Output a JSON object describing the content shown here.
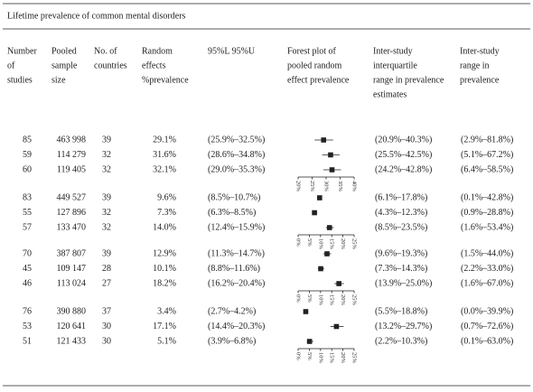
{
  "title": "Lifetime prevalence of common mental disorders",
  "table": {
    "columns": [
      [
        "Number",
        "of",
        "studies"
      ],
      [
        "Pooled",
        "sample",
        "size"
      ],
      [
        "No. of",
        "countries"
      ],
      [
        "Random",
        "effects",
        "%prevalence"
      ],
      [
        "95%L 95%U"
      ],
      [
        "Forest plot of",
        "pooled random",
        "effect prevalence"
      ],
      [
        "Inter-study",
        "interquartile",
        "range in prevalence",
        "estimates"
      ],
      [
        "Inter-study",
        "range in",
        "prevalence"
      ]
    ],
    "groups": [
      {
        "rows": [
          [
            "85",
            "463 998",
            "39",
            "29.1%",
            "(25.9%–32.5%)",
            "(20.9%–40.3%)",
            "(2.9%–81.8%)"
          ],
          [
            "59",
            "114 279",
            "32",
            "31.6%",
            "(28.6%–34.8%)",
            "(25.5%–42.5%)",
            "(5.1%–67.2%)"
          ],
          [
            "60",
            "119 405",
            "32",
            "32.1%",
            "(29.0%–35.3%)",
            "(24.2%–42.8%)",
            "(6.4%–58.5%)"
          ]
        ],
        "forest_plot": {
          "xlim": [
            20,
            40
          ],
          "xticks": [
            {
              "value": 20,
              "label": "20%"
            },
            {
              "value": 25,
              "label": "25%"
            },
            {
              "value": 30,
              "label": "30%"
            },
            {
              "value": 35,
              "label": "35%"
            },
            {
              "value": 40,
              "label": "40%"
            }
          ],
          "points": [
            {
              "value": 29.1,
              "low": 25.9,
              "high": 32.5
            },
            {
              "value": 31.6,
              "low": 28.6,
              "high": 34.8
            },
            {
              "value": 32.1,
              "low": 29.0,
              "high": 35.3
            }
          ]
        }
      },
      {
        "rows": [
          [
            "83",
            "449 527",
            "39",
            "9.6%",
            "(8.5%–10.7%)",
            "(6.1%–17.8%)",
            "(0.1%–42.8%)"
          ],
          [
            "55",
            "127 896",
            "32",
            "7.3%",
            "(6.3%–8.5%)",
            "(4.3%–12.3%)",
            "(0.9%–28.8%)"
          ],
          [
            "57",
            "133 470",
            "32",
            "14.0%",
            "(12.4%–15.9%)",
            "(8.5%–23.5%)",
            "(1.6%–53.4%)"
          ]
        ],
        "forest_plot": {
          "xlim": [
            0,
            25
          ],
          "xticks": [
            {
              "value": 0,
              "label": "0%"
            },
            {
              "value": 5,
              "label": "5%"
            },
            {
              "value": 10,
              "label": "10%"
            },
            {
              "value": 15,
              "label": "15%"
            },
            {
              "value": 20,
              "label": "20%"
            },
            {
              "value": 25,
              "label": "25%"
            }
          ],
          "points": [
            {
              "value": 9.6,
              "low": 8.5,
              "high": 10.7
            },
            {
              "value": 7.3,
              "low": 6.3,
              "high": 8.5
            },
            {
              "value": 14.0,
              "low": 12.4,
              "high": 15.9
            }
          ]
        }
      },
      {
        "rows": [
          [
            "70",
            "387 807",
            "39",
            "12.9%",
            "(11.3%–14.7%)",
            "(9.6%–19.3%)",
            "(1.5%–44.0%)"
          ],
          [
            "45",
            "109 147",
            "28",
            "10.1%",
            "(8.8%–11.6%)",
            "(7.3%–14.3%)",
            "(2.2%–33.0%)"
          ],
          [
            "46",
            "113 024",
            "27",
            "18.2%",
            "(16.2%–20.4%)",
            "(13.9%–25.0%)",
            "(1.6%–67.0%)"
          ]
        ],
        "forest_plot": {
          "xlim": [
            0,
            25
          ],
          "xticks": [
            {
              "value": 0,
              "label": "0%"
            },
            {
              "value": 5,
              "label": "5%"
            },
            {
              "value": 10,
              "label": "10%"
            },
            {
              "value": 15,
              "label": "15%"
            },
            {
              "value": 20,
              "label": "20%"
            },
            {
              "value": 25,
              "label": "25%"
            }
          ],
          "points": [
            {
              "value": 12.9,
              "low": 11.3,
              "high": 14.7
            },
            {
              "value": 10.1,
              "low": 8.8,
              "high": 11.6
            },
            {
              "value": 18.2,
              "low": 16.2,
              "high": 20.4
            }
          ]
        }
      },
      {
        "rows": [
          [
            "76",
            "390 880",
            "37",
            "3.4%",
            "(2.7%–4.2%)",
            "(5.5%–18.8%)",
            "(0.0%–39.9%)"
          ],
          [
            "53",
            "120 641",
            "30",
            "17.1%",
            "(14.4%–20.3%)",
            "(13.2%–29.7%)",
            "(0.7%–72.6%)"
          ],
          [
            "51",
            "121 433",
            "30",
            "5.1%",
            "(3.9%–6.8%)",
            "(2.2%–10.3%)",
            "(0.1%–63.0%)"
          ]
        ],
        "forest_plot": {
          "xlim": [
            0,
            25
          ],
          "xticks": [
            {
              "value": 0,
              "label": "0%"
            },
            {
              "value": 5,
              "label": "5%"
            },
            {
              "value": 10,
              "label": "10%"
            },
            {
              "value": 15,
              "label": "15%"
            },
            {
              "value": 20,
              "label": "20%"
            },
            {
              "value": 25,
              "label": "25%"
            }
          ],
          "points": [
            {
              "value": 3.4,
              "low": 2.7,
              "high": 4.2
            },
            {
              "value": 17.1,
              "low": 14.4,
              "high": 20.3
            },
            {
              "value": 5.1,
              "low": 3.9,
              "high": 6.8
            }
          ]
        }
      }
    ]
  }
}
